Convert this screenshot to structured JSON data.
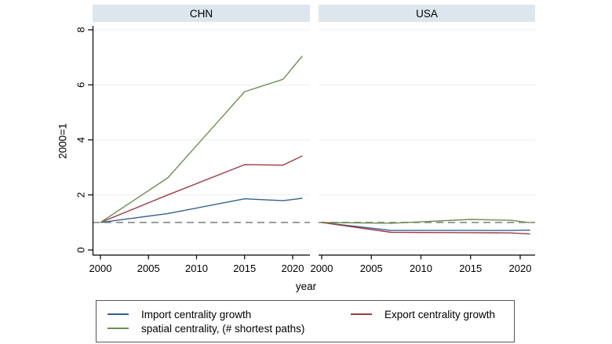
{
  "legend": {
    "items": [
      {
        "label": "Import centrality growth",
        "series_key": "import"
      },
      {
        "label": "Export centrality growth",
        "series_key": "export"
      },
      {
        "label": "spatial centrality, (# shortest paths)",
        "series_key": "spatial"
      }
    ]
  },
  "chart_data": {
    "type": "line",
    "title": "",
    "xlabel": "year",
    "ylabel": "2000=1",
    "x_ticks": [
      2000,
      2005,
      2010,
      2015,
      2020
    ],
    "y_ticks": [
      0,
      2,
      4,
      6,
      8
    ],
    "xlim": [
      2000,
      2021.8
    ],
    "ylim": [
      -0.17,
      8.32
    ],
    "grid": true,
    "legend_position": "bottom",
    "reference_line_y": 1,
    "colors": {
      "panel_header_bg": "#dde6ec",
      "grid_line": "#e9eff4",
      "reference_dash": "#8f8f8f",
      "axis": "#000000",
      "text": "#000000"
    },
    "panels": [
      {
        "title": "CHN",
        "x": [
          2000,
          2007,
          2015,
          2019,
          2021
        ],
        "series": [
          {
            "name": "Import centrality growth",
            "key": "import",
            "color": "#34608d",
            "values": [
              1,
              1.32,
              1.86,
              1.79,
              1.88
            ]
          },
          {
            "name": "Export centrality growth",
            "key": "export",
            "color": "#9c3a42",
            "values": [
              1,
              2.0,
              3.1,
              3.08,
              3.42
            ]
          },
          {
            "name": "spatial centrality, (# shortest paths)",
            "key": "spatial",
            "color": "#6d8f4e",
            "values": [
              1,
              2.62,
              5.75,
              6.2,
              7.05
            ]
          }
        ]
      },
      {
        "title": "USA",
        "x": [
          2000,
          2007,
          2015,
          2019,
          2021
        ],
        "series": [
          {
            "name": "Import centrality growth",
            "key": "import",
            "color": "#34608d",
            "values": [
              1,
              0.71,
              0.71,
              0.71,
              0.72
            ]
          },
          {
            "name": "Export centrality growth",
            "key": "export",
            "color": "#9c3a42",
            "values": [
              1,
              0.64,
              0.63,
              0.62,
              0.58
            ]
          },
          {
            "name": "spatial centrality, (# shortest paths)",
            "key": "spatial",
            "color": "#6d8f4e",
            "values": [
              1,
              0.97,
              1.11,
              1.08,
              0.99
            ]
          }
        ]
      }
    ]
  }
}
